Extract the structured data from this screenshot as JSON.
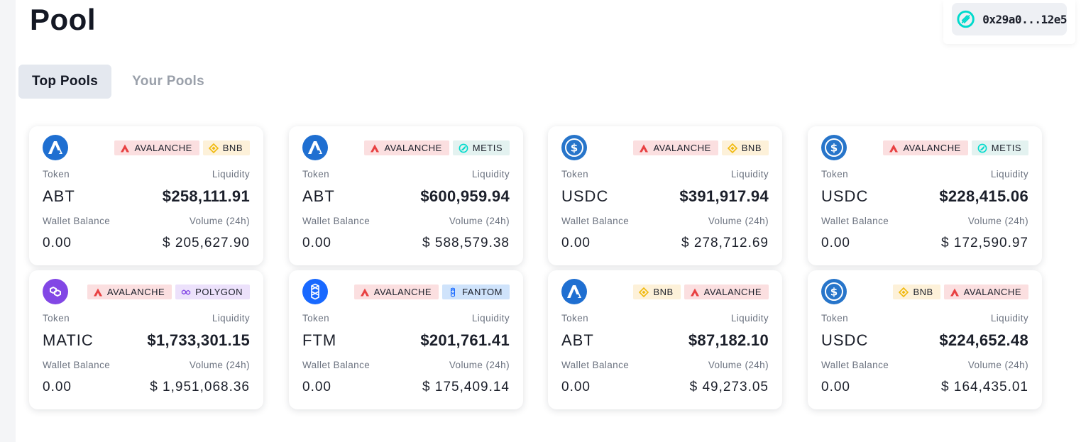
{
  "header": {
    "title": "Pool"
  },
  "wallet": {
    "address": "0x29a0...12e5",
    "icon": "metis-wallet-icon"
  },
  "tabs": [
    {
      "label": "Top Pools",
      "active": true
    },
    {
      "label": "Your Pools",
      "active": false
    }
  ],
  "labels": {
    "token": "Token",
    "liquidity": "Liquidity",
    "wallet_balance": "Wallet Balance",
    "volume": "Volume (24h)"
  },
  "colors": {
    "avalanche": "#e84142",
    "bnb": "#f0b90b",
    "metis": "#00dacc",
    "polygon": "#8247e5",
    "fantom": "#1969ff",
    "abt": "#1f6fd1",
    "usdc": "#2775ca"
  },
  "pools": [
    {
      "token": "ABT",
      "token_icon": "abt-icon",
      "chains": [
        "AVALANCHE",
        "BNB"
      ],
      "liquidity": "$258,111.91",
      "wallet_balance": "0.00",
      "volume": "$ 205,627.90"
    },
    {
      "token": "ABT",
      "token_icon": "abt-icon",
      "chains": [
        "AVALANCHE",
        "METIS"
      ],
      "liquidity": "$600,959.94",
      "wallet_balance": "0.00",
      "volume": "$ 588,579.38"
    },
    {
      "token": "USDC",
      "token_icon": "usdc-icon",
      "chains": [
        "AVALANCHE",
        "BNB"
      ],
      "liquidity": "$391,917.94",
      "wallet_balance": "0.00",
      "volume": "$ 278,712.69"
    },
    {
      "token": "USDC",
      "token_icon": "usdc-icon",
      "chains": [
        "AVALANCHE",
        "METIS"
      ],
      "liquidity": "$228,415.06",
      "wallet_balance": "0.00",
      "volume": "$ 172,590.97"
    },
    {
      "token": "MATIC",
      "token_icon": "polygon-icon",
      "chains": [
        "AVALANCHE",
        "POLYGON"
      ],
      "liquidity": "$1,733,301.15",
      "wallet_balance": "0.00",
      "volume": "$ 1,951,068.36"
    },
    {
      "token": "FTM",
      "token_icon": "fantom-icon",
      "chains": [
        "AVALANCHE",
        "FANTOM"
      ],
      "liquidity": "$201,761.41",
      "wallet_balance": "0.00",
      "volume": "$ 175,409.14"
    },
    {
      "token": "ABT",
      "token_icon": "abt-icon",
      "chains": [
        "BNB",
        "AVALANCHE"
      ],
      "liquidity": "$87,182.10",
      "wallet_balance": "0.00",
      "volume": "$ 49,273.05"
    },
    {
      "token": "USDC",
      "token_icon": "usdc-icon",
      "chains": [
        "BNB",
        "AVALANCHE"
      ],
      "liquidity": "$224,652.48",
      "wallet_balance": "0.00",
      "volume": "$ 164,435.01"
    }
  ]
}
